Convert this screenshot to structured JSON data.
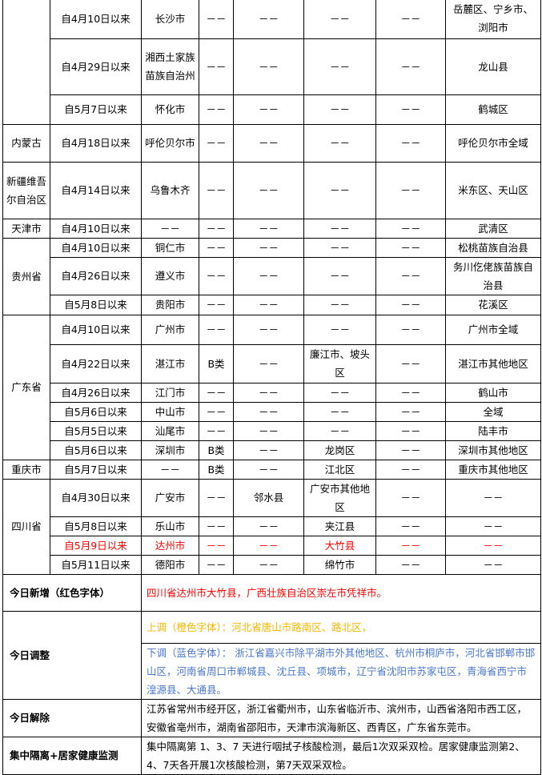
{
  "colors": {
    "new": "#ff0000",
    "up": "#f5b800",
    "down": "#4a78cf"
  },
  "groups": [
    {
      "province": "",
      "rows": [
        {
          "cells": [
            "自4月10日以来",
            "长沙市",
            "－－",
            "－－",
            "－－",
            "－－",
            "岳麓区、宁乡市、浏阳市"
          ]
        },
        {
          "cells": [
            "自4月29日以来",
            "湘西土家族苗族自治州",
            "－－",
            "－－",
            "－－",
            "－－",
            "龙山县"
          ]
        },
        {
          "cells": [
            "自5月7日以来",
            "怀化市",
            "－－",
            "－－",
            "－－",
            "－－",
            "鹤城区"
          ]
        }
      ]
    },
    {
      "province": "内蒙古",
      "rows": [
        {
          "cells": [
            "自4月18日以来",
            "呼伦贝尔市",
            "－－",
            "－－",
            "－－",
            "－－",
            "呼伦贝尔市全域"
          ]
        }
      ]
    },
    {
      "province": "新疆维吾尔自治区",
      "rows": [
        {
          "cells": [
            "自4月14日以来",
            "乌鲁木齐",
            "－－",
            "－－",
            "－－",
            "－－",
            "米东区、天山区"
          ]
        }
      ]
    },
    {
      "province": "天津市",
      "rows": [
        {
          "cells": [
            "自4月10日以来",
            "－－",
            "－－",
            "－－",
            "－－",
            "－－",
            "武清区"
          ]
        }
      ]
    },
    {
      "province": "贵州省",
      "rows": [
        {
          "cells": [
            "自4月10日以来",
            "铜仁市",
            "－－",
            "－－",
            "－－",
            "－－",
            "松桃苗族自治县"
          ]
        },
        {
          "cells": [
            "自4月26日以来",
            "遵义市",
            "－－",
            "－－",
            "－－",
            "－－",
            "务川仡佬族苗族自治县"
          ]
        },
        {
          "cells": [
            "自5月8日以来",
            "贵阳市",
            "－－",
            "－－",
            "－－",
            "－－",
            "花溪区"
          ]
        }
      ]
    },
    {
      "province": "广东省",
      "rows": [
        {
          "cells": [
            "自4月10日以来",
            "广州市",
            "－－",
            "－－",
            "－－",
            "－－",
            "广州市全域"
          ]
        },
        {
          "cells": [
            "自4月22日以来",
            "湛江市",
            "B类",
            "－－",
            "廉江市、坡头区",
            "－－",
            "湛江市其他地区"
          ]
        },
        {
          "cells": [
            "自4月26日以来",
            "江门市",
            "－－",
            "－－",
            "－－",
            "－－",
            "鹤山市"
          ]
        },
        {
          "cells": [
            "自5月6日以来",
            "中山市",
            "－－",
            "－－",
            "－－",
            "－－",
            "全域"
          ]
        },
        {
          "cells": [
            "自5月5日以来",
            "汕尾市",
            "－－",
            "－－",
            "－－",
            "－－",
            "陆丰市"
          ]
        },
        {
          "cells": [
            "自5月6日以来",
            "深圳市",
            "B类",
            "－－",
            "龙岗区",
            "－－",
            "深圳市其他地区"
          ]
        }
      ]
    },
    {
      "province": "重庆市",
      "rows": [
        {
          "cells": [
            "自5月7日以来",
            "－－",
            "B类",
            "－－",
            "江北区",
            "－－",
            "重庆市其他地区"
          ]
        }
      ]
    },
    {
      "province": "四川省",
      "rows": [
        {
          "cells": [
            "自4月30日以来",
            "广安市",
            "－－",
            "邻水县",
            "广安市其他地区",
            "－－",
            "－－"
          ]
        },
        {
          "cells": [
            "自5月8日以来",
            "乐山市",
            "－－",
            "－－",
            "夹江县",
            "－－",
            "－－"
          ]
        },
        {
          "cells": [
            "自5月9日以来",
            "达州市",
            "－－",
            "－－",
            "大竹县",
            "－－",
            "－－"
          ],
          "highlight": true
        },
        {
          "cells": [
            "自5月11日以来",
            "德阳市",
            "－－",
            "－－",
            "绵竹市",
            "－－",
            "－－"
          ]
        }
      ]
    }
  ],
  "summary": {
    "new_label": "今日新增（红色字体）",
    "new_text": "四川省达州市大竹县，广西壮族自治区崇左市凭祥市。",
    "adjust_label": "今日调整",
    "up_text": "上调（橙色字体）：河北省唐山市路南区、路北区，",
    "down_text": "下调（蓝色字体）： 浙江省嘉兴市除平湖市外其他地区、杭州市桐庐市，河北省邯郸市邯山区，河南省周口市郸城县、沈丘县、项城市，辽宁省沈阳市苏家屯区，青海省西宁市湟源县、大通县。",
    "lift_label": "今日解除",
    "lift_text": "江苏省常州市经开区，浙江省衢州市，山东省临沂市、滨州市，山西省洛阳市西工区，安徽省亳州市，湖南省邵阳市，天津市滨海新区、西青区，广东省东莞市。",
    "quarantine_label": "集中隔离+居家健康监测",
    "quarantine_text": "集中隔离第 1、3、7 天进行咽拭子核酸检测，最后1次双采双检。居家健康监测第2、4、7天各开展1次核酸检测，第7天双采双检。"
  }
}
